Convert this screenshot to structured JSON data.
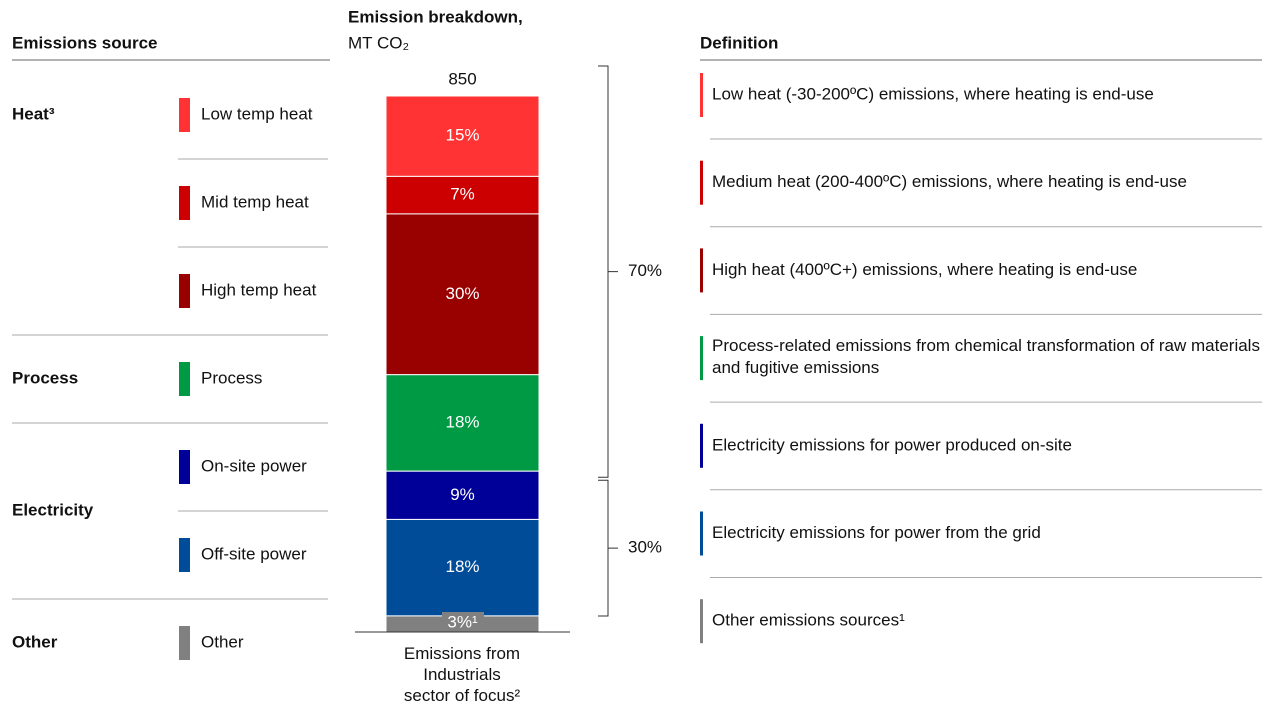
{
  "chart_data": {
    "type": "stacked_bar",
    "title": "Emission breakdown,",
    "subtitle": "MT CO₂",
    "category": "Emissions from Industrials sector of focus²",
    "total": 850,
    "series": [
      {
        "name": "Low temp heat",
        "color": "#ff3333",
        "values": [
          15
        ],
        "value_labels": [
          "15%"
        ]
      },
      {
        "name": "Mid temp heat",
        "color": "#cc0000",
        "values": [
          7
        ],
        "value_labels": [
          "7%"
        ]
      },
      {
        "name": "High temp heat",
        "color": "#990000",
        "values": [
          30
        ],
        "value_labels": [
          "30%"
        ]
      },
      {
        "name": "Process",
        "color": "#009944",
        "values": [
          18
        ],
        "value_labels": [
          "18%"
        ]
      },
      {
        "name": "On-site power",
        "color": "#000099",
        "values": [
          9
        ],
        "value_labels": [
          "9%"
        ]
      },
      {
        "name": "Off-site power",
        "color": "#004c99",
        "values": [
          18
        ],
        "value_labels": [
          "18%"
        ]
      },
      {
        "name": "Other",
        "color": "#808080",
        "values": [
          3
        ],
        "value_labels": [
          "3%¹"
        ]
      }
    ],
    "group_values": [
      70,
      30
    ],
    "group_labels": [
      "70%",
      "30%"
    ]
  },
  "header": {
    "source": "Emissions source",
    "definition": "Definition"
  },
  "groups": [
    "Heat³",
    "Process",
    "Electricity",
    "Other"
  ],
  "definitions": [
    "Low heat (-30-200ºC) emissions, where heating is end-use",
    "Medium heat (200-400ºC) emissions, where heating is end-use",
    "High heat (400ºC+) emissions, where heating is end-use",
    "Process-related emissions from chemical transformation of raw materials and fugitive emissions",
    "Electricity emissions for power produced on-site",
    "Electricity emissions for power from the grid",
    "Other emissions sources¹"
  ]
}
